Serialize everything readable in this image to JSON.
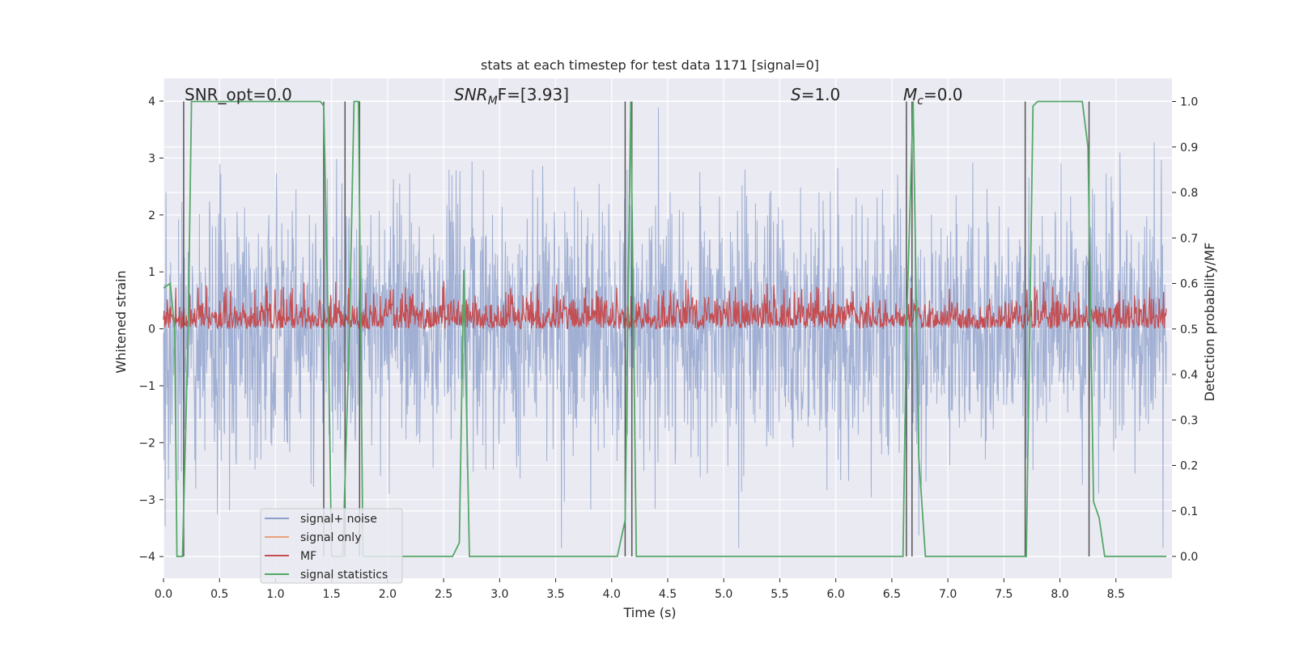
{
  "chart_data": {
    "type": "line",
    "title": "stats at each timestep for test data 1171 [signal=0]",
    "xlabel": "Time (s)",
    "ylabel_left": "Whitened strain",
    "ylabel_right": "Detection probability/MF",
    "xlim": [
      0,
      9.0
    ],
    "ylim_left": [
      -4.35,
      4.4
    ],
    "ylim_right": [
      -0.05,
      1.04
    ],
    "xticks": [
      "0.0",
      "0.5",
      "1.0",
      "1.5",
      "2.0",
      "2.5",
      "3.0",
      "3.5",
      "4.0",
      "4.5",
      "5.0",
      "5.5",
      "6.0",
      "6.5",
      "7.0",
      "7.5",
      "8.0",
      "8.5"
    ],
    "yticks_left": [
      "4",
      "3",
      "2",
      "1",
      "0",
      "−1",
      "−2",
      "−3",
      "−4"
    ],
    "yticks_right": [
      "1.0",
      "0.9",
      "0.8",
      "0.7",
      "0.6",
      "0.5",
      "0.4",
      "0.3",
      "0.2",
      "0.1",
      "0.0"
    ],
    "grid": true,
    "legend_position": "lower-left",
    "annotations": {
      "snr_opt": "SNR_opt=0.0",
      "snr_mf_base": "SNR",
      "snr_mf_sub": "M",
      "snr_mf_rest": "F=[3.93]",
      "s_italic": "S",
      "s_rest": "=1.0",
      "mc_base": "M",
      "mc_sub": "c",
      "mc_rest": "=0.0"
    },
    "series": [
      {
        "name": "signal+ noise",
        "color": "#8da0cb",
        "amplitude_std": 1.1
      },
      {
        "name": "signal only",
        "color": "#e8a07a",
        "values": "zero"
      },
      {
        "name": "MF",
        "color": "#c44e52",
        "baseline": 0.5,
        "range": [
          0.5,
          0.61
        ]
      },
      {
        "name": "signal statistics",
        "color": "#55a868",
        "x": [
          0.0,
          0.06,
          0.1,
          0.12,
          0.17,
          0.22,
          0.25,
          0.4,
          1.0,
          1.4,
          1.43,
          1.47,
          1.5,
          1.55,
          1.6,
          1.66,
          1.7,
          1.74,
          1.76,
          1.78,
          2.58,
          2.64,
          2.68,
          2.73,
          2.75,
          4.05,
          4.12,
          4.17,
          4.22,
          4.25,
          6.6,
          6.63,
          6.69,
          6.74,
          6.8,
          7.7,
          7.73,
          7.76,
          7.8,
          7.85,
          8.2,
          8.25,
          8.3,
          8.35,
          8.4,
          8.5,
          8.95
        ],
        "y": [
          0.59,
          0.6,
          0.5,
          0.0,
          0.0,
          0.5,
          1.0,
          1.0,
          1.0,
          1.0,
          0.99,
          0.5,
          0.0,
          0.0,
          0.0,
          0.5,
          1.0,
          1.0,
          0.5,
          0.0,
          0.0,
          0.03,
          0.63,
          0.0,
          0.0,
          0.0,
          0.08,
          1.0,
          0.0,
          0.0,
          0.0,
          0.5,
          1.0,
          0.22,
          0.0,
          0.0,
          0.5,
          0.99,
          1.0,
          1.0,
          1.0,
          0.9,
          0.12,
          0.085,
          0.0,
          0.0,
          0.0
        ]
      }
    ],
    "vertical_markers": [
      0.18,
      1.43,
      1.62,
      1.75,
      4.12,
      4.18,
      6.63,
      6.68,
      7.69,
      8.26
    ]
  }
}
